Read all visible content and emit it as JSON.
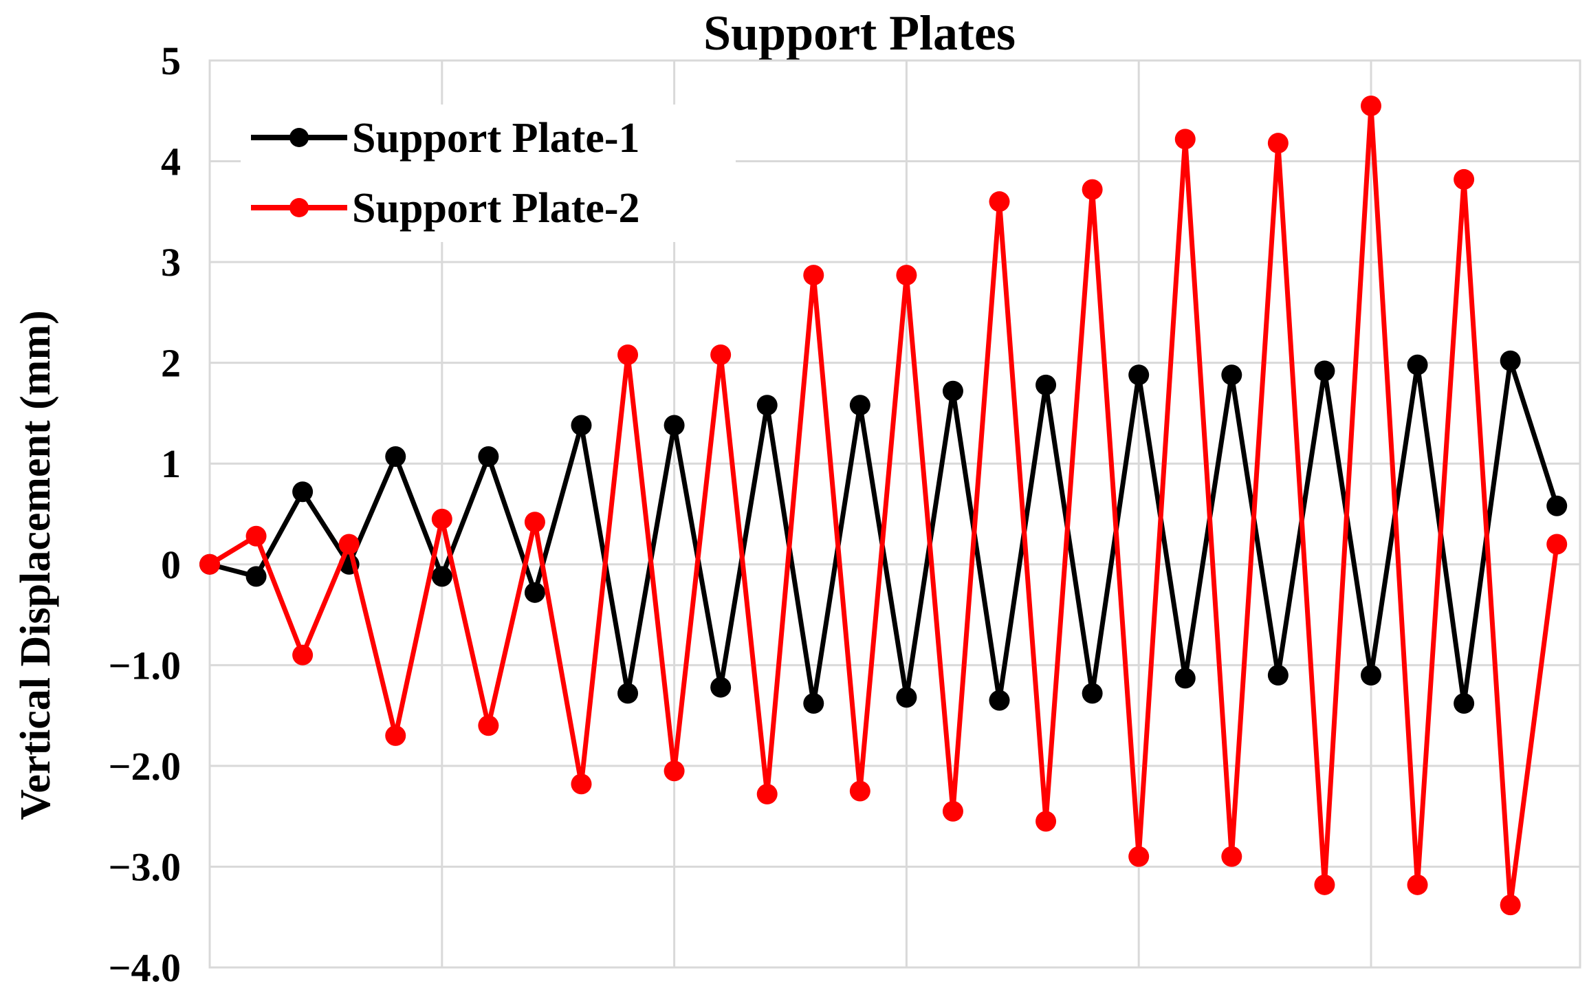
{
  "chart_data": {
    "type": "line",
    "title": "Support Plates",
    "xlabel": "",
    "ylabel": "Vertical Displacement (mm)",
    "ylim": [
      -4.0,
      5
    ],
    "yticks": [
      {
        "value": 5,
        "label": "5"
      },
      {
        "value": 4,
        "label": "4"
      },
      {
        "value": 3,
        "label": "3"
      },
      {
        "value": 2,
        "label": "2"
      },
      {
        "value": 1,
        "label": "1"
      },
      {
        "value": 0,
        "label": "0"
      },
      {
        "value": -1,
        "label": "−1.0"
      },
      {
        "value": -2,
        "label": "−2.0"
      },
      {
        "value": -3,
        "label": "−3.0"
      },
      {
        "value": -4,
        "label": "−4.0"
      }
    ],
    "grid": true,
    "legend_position": "top-left",
    "x": [
      0,
      1,
      2,
      3,
      4,
      5,
      6,
      7,
      8,
      9,
      10,
      11,
      12,
      13,
      14,
      15,
      16,
      17,
      18,
      19,
      20,
      21,
      22,
      23,
      24,
      25,
      26,
      27,
      28,
      29
    ],
    "xlim": [
      0,
      29.5
    ],
    "vertical_gridlines": [
      5,
      10,
      15,
      20,
      25
    ],
    "series": [
      {
        "name": "Support Plate-1",
        "color": "#000000",
        "values": [
          0,
          -0.12,
          0.72,
          0,
          1.07,
          -0.12,
          1.07,
          -0.28,
          1.38,
          -1.28,
          1.38,
          -1.22,
          1.58,
          -1.38,
          1.58,
          -1.32,
          1.72,
          -1.35,
          1.78,
          -1.28,
          1.88,
          -1.13,
          1.88,
          -1.1,
          1.92,
          -1.1,
          1.98,
          -1.38,
          2.02,
          0.58
        ]
      },
      {
        "name": "Support Plate-2",
        "color": "#ff0000",
        "values": [
          0,
          0.28,
          -0.9,
          0.2,
          -1.7,
          0.45,
          -1.6,
          0.42,
          -2.18,
          2.08,
          -2.05,
          2.08,
          -2.28,
          2.87,
          -2.25,
          2.87,
          -2.45,
          3.6,
          -2.55,
          3.72,
          -2.9,
          4.22,
          -2.9,
          4.18,
          -3.18,
          4.55,
          -3.18,
          3.82,
          -3.38,
          0.2
        ]
      }
    ]
  }
}
